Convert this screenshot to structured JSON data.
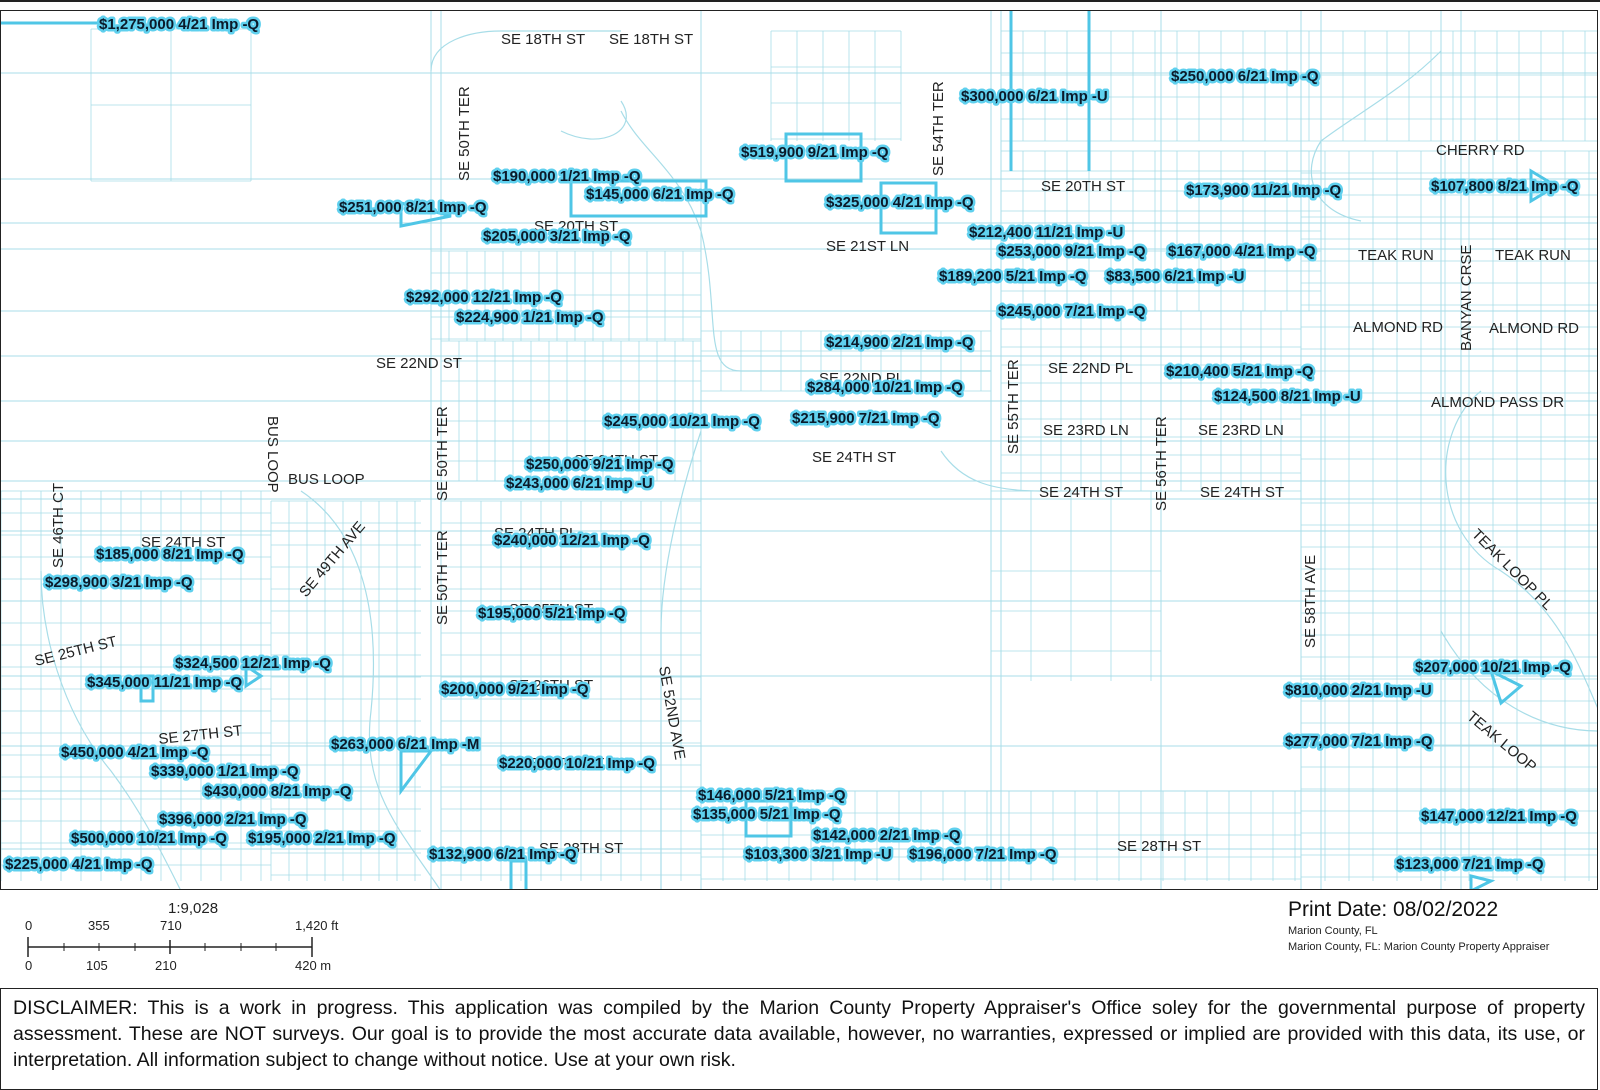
{
  "map": {
    "streets": [
      {
        "label": "SE 18TH ST"
      },
      {
        "label": "SE 18TH ST"
      },
      {
        "label": "SE 50TH TER"
      },
      {
        "label": "SE 54TH TER"
      },
      {
        "label": "CHERRY RD"
      },
      {
        "label": "SE 20TH ST"
      },
      {
        "label": "SE 20TH ST"
      },
      {
        "label": "SE 21ST LN"
      },
      {
        "label": "TEAK RUN"
      },
      {
        "label": "TEAK RUN"
      },
      {
        "label": "BANYAN CRSE"
      },
      {
        "label": "ALMOND RD"
      },
      {
        "label": "ALMOND RD"
      },
      {
        "label": "SE 22ND ST"
      },
      {
        "label": "SE 22ND PL"
      },
      {
        "label": "SE 22ND PL"
      },
      {
        "label": "SE 55TH TER"
      },
      {
        "label": "ALMOND PASS DR"
      },
      {
        "label": "BUS LOOP"
      },
      {
        "label": "BUS LOOP"
      },
      {
        "label": "SE 50TH TER"
      },
      {
        "label": "SE 24TH ST"
      },
      {
        "label": "SE 24TH ST"
      },
      {
        "label": "SE 23RD LN"
      },
      {
        "label": "SE 23RD LN"
      },
      {
        "label": "SE 56TH TER"
      },
      {
        "label": "SE 24TH ST"
      },
      {
        "label": "SE 24TH ST"
      },
      {
        "label": "SE 46TH CT"
      },
      {
        "label": "SE 24TH ST"
      },
      {
        "label": "SE 49TH AVE"
      },
      {
        "label": "SE 24TH PL"
      },
      {
        "label": "SE 50TH TER"
      },
      {
        "label": "SE 58TH AVE"
      },
      {
        "label": "TEAK LOOP PL"
      },
      {
        "label": "SE 25TH ST"
      },
      {
        "label": "SE 25TH ST"
      },
      {
        "label": "SE 52ND AVE"
      },
      {
        "label": "SE 26TH ST"
      },
      {
        "label": "TEAK LOOP"
      },
      {
        "label": "SE 27TH ST"
      },
      {
        "label": "SE 27TH ST"
      },
      {
        "label": "SE 28TH ST"
      },
      {
        "label": "SE 28TH ST"
      }
    ],
    "sales": [
      {
        "label": "$1,275,000 4/21 Imp -Q"
      },
      {
        "label": "$250,000 6/21 Imp -Q"
      },
      {
        "label": "$300,000 6/21 Imp -U"
      },
      {
        "label": "$519,900 9/21 Imp -Q"
      },
      {
        "label": "$190,000 1/21 Imp -Q"
      },
      {
        "label": "$145,000 6/21 Imp -Q"
      },
      {
        "label": "$251,000 8/21 Imp -Q"
      },
      {
        "label": "$325,000 4/21 Imp -Q"
      },
      {
        "label": "$173,900 11/21 Imp -Q"
      },
      {
        "label": "$107,800 8/21 Imp -Q"
      },
      {
        "label": "$205,000 3/21 Imp -Q"
      },
      {
        "label": "$212,400 11/21 Imp -U"
      },
      {
        "label": "$253,000 9/21 Imp -Q"
      },
      {
        "label": "$167,000 4/21 Imp -Q"
      },
      {
        "label": "$189,200 5/21 Imp -Q"
      },
      {
        "label": "$83,500 6/21 Imp -U"
      },
      {
        "label": "$292,000 12/21 Imp -Q"
      },
      {
        "label": "$224,900 1/21 Imp -Q"
      },
      {
        "label": "$245,000 7/21 Imp -Q"
      },
      {
        "label": "$214,900 2/21 Imp -Q"
      },
      {
        "label": "$210,400 5/21 Imp -Q"
      },
      {
        "label": "$284,000 10/21 Imp -Q"
      },
      {
        "label": "$124,500 8/21 Imp -U"
      },
      {
        "label": "$245,000 10/21 Imp -Q"
      },
      {
        "label": "$215,900 7/21 Imp -Q"
      },
      {
        "label": "$250,000 9/21 Imp -Q"
      },
      {
        "label": "$243,000 6/21 Imp -U"
      },
      {
        "label": "$185,000 8/21 Imp -Q"
      },
      {
        "label": "$240,000 12/21 Imp -Q"
      },
      {
        "label": "$298,900 3/21 Imp -Q"
      },
      {
        "label": "$195,000 5/21 Imp -Q"
      },
      {
        "label": "$324,500 12/21 Imp -Q"
      },
      {
        "label": "$207,000 10/21 Imp -Q"
      },
      {
        "label": "$345,000 11/21 Imp -Q"
      },
      {
        "label": "$200,000 9/21 Imp -Q"
      },
      {
        "label": "$810,000 2/21 Imp -U"
      },
      {
        "label": "$263,000 6/21 Imp -M"
      },
      {
        "label": "$450,000 4/21 Imp -Q"
      },
      {
        "label": "$339,000 1/21 Imp -Q"
      },
      {
        "label": "$220,000 10/21 Imp -Q"
      },
      {
        "label": "$277,000 7/21 Imp -Q"
      },
      {
        "label": "$430,000 8/21 Imp -Q"
      },
      {
        "label": "$146,000 5/21 Imp -Q"
      },
      {
        "label": "$135,000 5/21 Imp -Q"
      },
      {
        "label": "$396,000 2/21 Imp -Q"
      },
      {
        "label": "$147,000 12/21 Imp -Q"
      },
      {
        "label": "$500,000 10/21 Imp -Q"
      },
      {
        "label": "$195,000 2/21 Imp -Q"
      },
      {
        "label": "$142,000 2/21 Imp -Q"
      },
      {
        "label": "$132,900 6/21 Imp -Q"
      },
      {
        "label": "$103,300 3/21 Imp -U"
      },
      {
        "label": "$196,000 7/21 Imp -Q"
      },
      {
        "label": "$225,000 4/21 Imp -Q"
      },
      {
        "label": "$123,000 7/21 Imp -Q"
      }
    ],
    "colors": {
      "road": "#a8dde8",
      "highlight": "#4fc6e6",
      "label_bg": "#5fd0ee"
    }
  },
  "scale": {
    "ratio": "1:9,028",
    "ft_ticks": [
      "0",
      "355",
      "710",
      "1,420 ft"
    ],
    "m_ticks": [
      "0",
      "105",
      "210",
      "420 m"
    ]
  },
  "footer": {
    "print_date": "Print Date: 08/02/2022",
    "source_line": "Marion County, FL",
    "source_text": "Marion County, FL: Marion County Property Appraiser",
    "disclaimer": "DISCLAIMER: This is a work in progress. This application was compiled by the Marion County Property Appraiser's Office soley for the governmental purpose of property assessment. These are NOT surveys. Our goal is to provide the most accurate data available, however, no warranties, expressed or implied are provided with this data, its use, or interpretation. All information subject to change without notice. Use at your own risk."
  }
}
